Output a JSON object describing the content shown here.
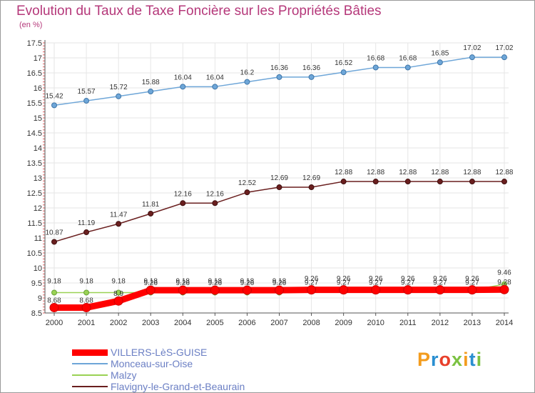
{
  "chart_data": {
    "type": "line",
    "title": "Evolution du Taux de Taxe Foncière sur les Propriétés Bâties",
    "ylabel": "(en %)",
    "ylim": [
      8.5,
      17.5
    ],
    "yticks": [
      "8.5",
      "9",
      "9.5",
      "10",
      "10.5",
      "11",
      "11.5",
      "12",
      "12.5",
      "13",
      "13.5",
      "14",
      "14.5",
      "15",
      "15.5",
      "16",
      "16.5",
      "17",
      "17.5"
    ],
    "categories": [
      "2000",
      "2001",
      "2002",
      "2003",
      "2004",
      "2005",
      "2006",
      "2007",
      "2008",
      "2009",
      "2010",
      "2011",
      "2012",
      "2013",
      "2014"
    ],
    "series": [
      {
        "name": "VILLERS-LèS-GUISE",
        "color": "#ff0000",
        "values": [
          8.68,
          8.68,
          8.9,
          9.26,
          9.26,
          9.26,
          9.26,
          9.26,
          9.27,
          9.27,
          9.27,
          9.27,
          9.27,
          9.27,
          9.28
        ],
        "labels": [
          "8.68",
          "8.68",
          "8.9",
          "9.26",
          "9.26",
          "9.26",
          "9.26",
          "9.26",
          "9.27",
          "9.27",
          "9.27",
          "9.27",
          "9.27",
          "9.27",
          "9.28"
        ]
      },
      {
        "name": "Monceau-sur-Oise",
        "color": "#6ea6d8",
        "values": [
          15.42,
          15.57,
          15.72,
          15.88,
          16.04,
          16.04,
          16.2,
          16.36,
          16.36,
          16.52,
          16.68,
          16.68,
          16.85,
          17.02,
          17.02
        ],
        "labels": [
          "15.42",
          "15.57",
          "15.72",
          "15.88",
          "16.04",
          "16.04",
          "16.2",
          "16.36",
          "16.36",
          "16.52",
          "16.68",
          "16.68",
          "16.85",
          "17.02",
          "17.02"
        ]
      },
      {
        "name": "Malzy",
        "color": "#9ad254",
        "values": [
          9.18,
          9.18,
          9.18,
          9.18,
          9.18,
          9.18,
          9.18,
          9.18,
          9.26,
          9.26,
          9.26,
          9.26,
          9.26,
          9.26,
          9.46
        ],
        "labels": [
          "9.18",
          "9.18",
          "9.18",
          "9.18",
          "9.18",
          "9.18",
          "9.18",
          "9.18",
          "9.26",
          "9.26",
          "9.26",
          "9.26",
          "9.26",
          "9.26",
          "9.46"
        ]
      },
      {
        "name": "Flavigny-le-Grand-et-Beaurain",
        "color": "#6a1f1f",
        "values": [
          10.87,
          11.19,
          11.47,
          11.81,
          12.16,
          12.16,
          12.52,
          12.69,
          12.69,
          12.88,
          12.88,
          12.88,
          12.88,
          12.88,
          12.88
        ],
        "labels": [
          "10.87",
          "11.19",
          "11.47",
          "11.81",
          "12.16",
          "12.16",
          "12.52",
          "12.69",
          "12.69",
          "12.88",
          "12.88",
          "12.88",
          "12.88",
          "12.88",
          "12.88"
        ]
      }
    ]
  },
  "logo": {
    "letters": [
      {
        "ch": "P",
        "color": "#f39c1e"
      },
      {
        "ch": "r",
        "color": "#2a8fd1"
      },
      {
        "ch": "o",
        "color": "#e8402b"
      },
      {
        "ch": "x",
        "color": "#7cc242"
      },
      {
        "ch": "i",
        "color": "#f39c1e"
      },
      {
        "ch": "t",
        "color": "#2a8fd1"
      },
      {
        "ch": "i",
        "color": "#7cc242"
      }
    ]
  }
}
